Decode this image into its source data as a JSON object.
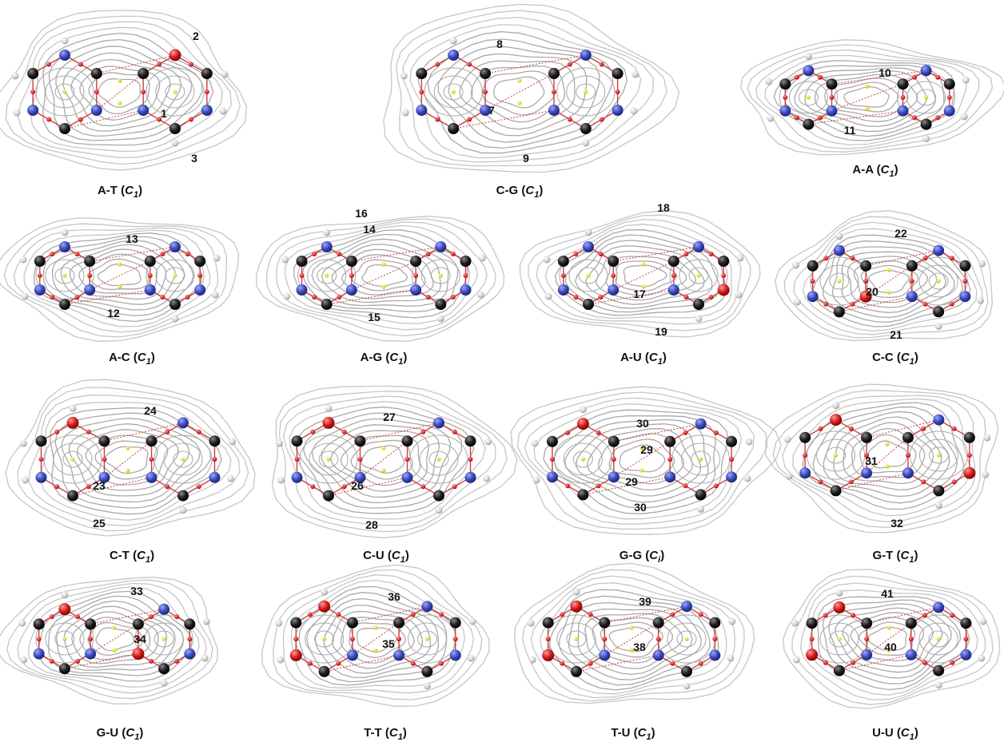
{
  "panels": [
    {
      "id": "A-T",
      "caption_pair": "A-T",
      "sym_base": "C",
      "sym_sub": "1",
      "bond_labels": [
        "1",
        "2",
        "3"
      ],
      "hetero_colors": [
        "n",
        "n",
        "n",
        "n",
        "n",
        "n",
        "n",
        "n",
        "n",
        "o",
        "o",
        "n"
      ]
    },
    {
      "id": "C-G",
      "caption_pair": "C-G",
      "sym_base": "C",
      "sym_sub": "1",
      "bond_labels": [
        "7",
        "8",
        "9"
      ],
      "hetero_colors": [
        "n",
        "o",
        "n",
        "n",
        "n",
        "n",
        "n",
        "o",
        "n",
        "n",
        "n",
        "n"
      ]
    },
    {
      "id": "A-A",
      "caption_pair": "A-A",
      "sym_base": "C",
      "sym_sub": "1",
      "bond_labels": [
        "10",
        "11"
      ],
      "hetero_colors": [
        "n",
        "n",
        "n",
        "n",
        "n",
        "n",
        "n",
        "n",
        "n",
        "n"
      ]
    },
    {
      "id": "A-C",
      "caption_pair": "A-C",
      "sym_base": "C",
      "sym_sub": "1",
      "bond_labels": [
        "12",
        "13"
      ],
      "hetero_colors": [
        "n",
        "n",
        "n",
        "n",
        "n",
        "n",
        "n",
        "o",
        "n",
        "n"
      ]
    },
    {
      "id": "A-G",
      "caption_pair": "A-G",
      "sym_base": "C",
      "sym_sub": "1",
      "bond_labels": [
        "14",
        "15",
        "16"
      ],
      "hetero_colors": [
        "n",
        "n",
        "n",
        "n",
        "n",
        "n",
        "n",
        "o",
        "n",
        "n",
        "n"
      ]
    },
    {
      "id": "A-U",
      "caption_pair": "A-U",
      "sym_base": "C",
      "sym_sub": "1",
      "bond_labels": [
        "17",
        "18",
        "19"
      ],
      "hetero_colors": [
        "n",
        "n",
        "n",
        "n",
        "n",
        "n",
        "o",
        "o",
        "n",
        "n"
      ]
    },
    {
      "id": "C-C",
      "caption_pair": "C-C",
      "sym_base": "C",
      "sym_sub": "1",
      "bond_labels": [
        "20",
        "21",
        "22"
      ],
      "hetero_colors": [
        "o",
        "n",
        "n",
        "n",
        "n",
        "n",
        "n",
        "o",
        "n"
      ]
    },
    {
      "id": "C-T",
      "caption_pair": "C-T",
      "sym_base": "C",
      "sym_sub": "1",
      "bond_labels": [
        "23",
        "24",
        "25"
      ],
      "hetero_colors": [
        "n",
        "n",
        "n",
        "n",
        "o",
        "o",
        "n",
        "o",
        "n"
      ]
    },
    {
      "id": "C-U",
      "caption_pair": "C-U",
      "sym_base": "C",
      "sym_sub": "1",
      "bond_labels": [
        "26",
        "27",
        "28"
      ],
      "hetero_colors": [
        "n",
        "n",
        "n",
        "n",
        "o",
        "o",
        "n",
        "o",
        "n"
      ]
    },
    {
      "id": "G-G",
      "caption_pair": "G-G",
      "sym_base": "C",
      "sym_sub": "i",
      "bond_labels": [
        "29",
        "29",
        "30",
        "30"
      ],
      "hetero_colors": [
        "n",
        "n",
        "n",
        "n",
        "o",
        "n",
        "n",
        "n",
        "n",
        "o",
        "n",
        "n"
      ]
    },
    {
      "id": "G-T",
      "caption_pair": "G-T",
      "sym_base": "C",
      "sym_sub": "1",
      "bond_labels": [
        "31",
        "32"
      ],
      "hetero_colors": [
        "n",
        "n",
        "n",
        "n",
        "o",
        "n",
        "o",
        "n",
        "n",
        "o",
        "n"
      ]
    },
    {
      "id": "G-U",
      "caption_pair": "G-U",
      "sym_base": "C",
      "sym_sub": "1",
      "bond_labels": [
        "33",
        "34"
      ],
      "hetero_colors": [
        "n",
        "n",
        "n",
        "n",
        "o",
        "o",
        "n",
        "n",
        "o",
        "n"
      ]
    },
    {
      "id": "T-T",
      "caption_pair": "T-T",
      "sym_base": "C",
      "sym_sub": "1",
      "bond_labels": [
        "35",
        "36"
      ],
      "hetero_colors": [
        "n",
        "n",
        "o",
        "o",
        "o",
        "n",
        "n",
        "o",
        "n"
      ]
    },
    {
      "id": "T-U",
      "caption_pair": "T-U",
      "sym_base": "C",
      "sym_sub": "1",
      "bond_labels": [
        "38",
        "39"
      ],
      "hetero_colors": [
        "n",
        "n",
        "o",
        "o",
        "o",
        "n",
        "n",
        "o",
        "n"
      ]
    },
    {
      "id": "U-U",
      "caption_pair": "U-U",
      "sym_base": "C",
      "sym_sub": "1",
      "bond_labels": [
        "40",
        "41"
      ],
      "hetero_colors": [
        "n",
        "n",
        "o",
        "o",
        "o",
        "n",
        "n",
        "o",
        "n"
      ]
    }
  ],
  "colors": {
    "contour": "#a9a9a9",
    "contour_outer": "#c6c6c6",
    "carbon": "#111111",
    "nitrogen": "#3848b8",
    "oxygen": "#d01818",
    "hydrogen": "#e2e2e2",
    "bcp": "#e01818",
    "rcp": "#e6e600",
    "bond_path": "#c94040"
  }
}
